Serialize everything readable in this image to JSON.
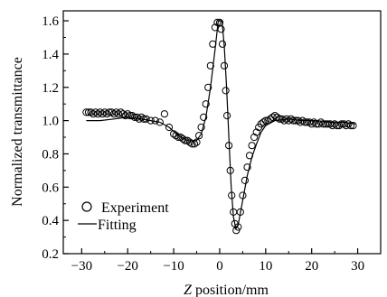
{
  "chart_data": {
    "type": "scatter",
    "title": "",
    "xlabel_italic": "Z",
    "xlabel_rest": " position/mm",
    "ylabel": "Normalized transmittance",
    "xlim": [
      -34,
      35
    ],
    "ylim": [
      0.2,
      1.66
    ],
    "x_ticks": [
      -30,
      -20,
      -10,
      0,
      10,
      20,
      30
    ],
    "y_ticks": [
      0.2,
      0.4,
      0.6,
      0.8,
      1.0,
      1.2,
      1.4,
      1.6
    ],
    "x_tick_labels": [
      "−30",
      "−20",
      "−10",
      "0",
      "10",
      "20",
      "30"
    ],
    "y_tick_labels": [
      "0.2",
      "0.4",
      "0.6",
      "0.8",
      "1.0",
      "1.2",
      "1.4",
      "1.6"
    ],
    "legend_position": "bottom-left",
    "series": [
      {
        "name": "Experiment",
        "marker": "open-circle",
        "color": "#000000",
        "x": [
          -29,
          -28.5,
          -28,
          -27.5,
          -27,
          -26.5,
          -26,
          -25.5,
          -25,
          -24.5,
          -24,
          -23.5,
          -23,
          -22.5,
          -22,
          -21.5,
          -21,
          -20.5,
          -20,
          -19.5,
          -19,
          -18.5,
          -18,
          -17.5,
          -17,
          -16.5,
          -16,
          -15,
          -14,
          -13,
          -12,
          -11,
          -10,
          -9.5,
          -9,
          -8.5,
          -8,
          -7.5,
          -7,
          -6.5,
          -6,
          -5.5,
          -5,
          -4.5,
          -4,
          -3.5,
          -3,
          -2.5,
          -2,
          -1.5,
          -1,
          -0.5,
          0,
          0.3,
          0.6,
          1,
          1.3,
          1.6,
          2,
          2.3,
          2.6,
          3,
          3.3,
          3.6,
          4,
          4.5,
          5,
          5.5,
          6,
          6.5,
          7,
          7.5,
          8,
          8.5,
          9,
          9.5,
          10,
          10.5,
          11,
          11.5,
          12,
          12.5,
          13,
          13.5,
          14,
          14.5,
          15,
          15.5,
          16,
          16.5,
          17,
          17.5,
          18,
          18.5,
          19,
          19.5,
          20,
          20.5,
          21,
          21.5,
          22,
          22.5,
          23,
          23.5,
          24,
          24.5,
          25,
          25.5,
          26,
          26.5,
          27,
          27.5,
          28,
          28.5,
          29
        ],
        "y": [
          1.05,
          1.05,
          1.05,
          1.04,
          1.05,
          1.04,
          1.05,
          1.04,
          1.05,
          1.04,
          1.05,
          1.05,
          1.04,
          1.05,
          1.04,
          1.05,
          1.04,
          1.03,
          1.04,
          1.03,
          1.03,
          1.02,
          1.02,
          1.01,
          1.02,
          1.01,
          1.01,
          1.0,
          1.0,
          0.99,
          1.04,
          0.96,
          0.92,
          0.91,
          0.9,
          0.9,
          0.89,
          0.88,
          0.88,
          0.87,
          0.86,
          0.86,
          0.87,
          0.91,
          0.96,
          1.02,
          1.1,
          1.2,
          1.33,
          1.46,
          1.56,
          1.59,
          1.59,
          1.55,
          1.46,
          1.33,
          1.18,
          1.03,
          0.85,
          0.7,
          0.55,
          0.45,
          0.38,
          0.34,
          0.36,
          0.45,
          0.55,
          0.64,
          0.72,
          0.79,
          0.85,
          0.9,
          0.93,
          0.96,
          0.98,
          0.99,
          1.0,
          1.0,
          1.01,
          1.02,
          1.03,
          1.02,
          1.01,
          1.01,
          1.0,
          1.01,
          1.0,
          1.01,
          1.0,
          1.0,
          1.0,
          0.99,
          1.0,
          0.99,
          0.99,
          0.99,
          0.98,
          0.99,
          0.98,
          0.98,
          0.99,
          0.98,
          0.98,
          0.98,
          0.98,
          0.97,
          0.98,
          0.97,
          0.97,
          0.98,
          0.98,
          0.97,
          0.98,
          0.97,
          0.97
        ]
      },
      {
        "name": "Fitting",
        "marker": "line",
        "color": "#000000",
        "x": [
          -29,
          -26,
          -23,
          -20,
          -17,
          -15,
          -13,
          -11,
          -9,
          -7,
          -5,
          -4,
          -3,
          -2,
          -1,
          -0.3,
          0.5,
          1,
          1.5,
          2,
          2.5,
          3,
          3.5,
          4,
          5,
          6,
          7,
          8,
          9,
          10,
          12,
          15,
          18,
          21,
          24,
          27,
          29.5
        ],
        "y": [
          1.0,
          1.0,
          1.01,
          1.02,
          1.01,
          1.0,
          0.99,
          0.96,
          0.91,
          0.88,
          0.88,
          0.92,
          1.02,
          1.2,
          1.43,
          1.6,
          1.6,
          1.45,
          1.2,
          0.9,
          0.6,
          0.42,
          0.35,
          0.37,
          0.52,
          0.67,
          0.78,
          0.86,
          0.93,
          0.97,
          1.0,
          1.01,
          1.0,
          1.0,
          0.99,
          0.99,
          0.98
        ]
      }
    ]
  }
}
